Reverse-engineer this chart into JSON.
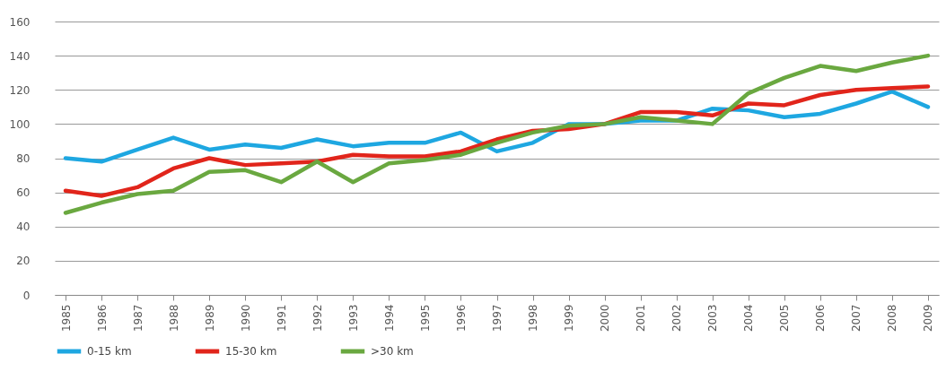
{
  "chart_data": {
    "type": "line",
    "categories": [
      "1985",
      "1986",
      "1987",
      "1988",
      "1989",
      "1990",
      "1991",
      "1992",
      "1993",
      "1994",
      "1995",
      "1996",
      "1997",
      "1998",
      "1999",
      "2000",
      "2001",
      "2002",
      "2003",
      "2004",
      "2005",
      "2006",
      "2007",
      "2008",
      "2009"
    ],
    "series": [
      {
        "name": "0-15 km",
        "color": "#1ea7e1",
        "values": [
          80,
          78,
          85,
          92,
          85,
          88,
          86,
          91,
          87,
          89,
          89,
          95,
          84,
          89,
          100,
          100,
          102,
          102,
          109,
          108,
          104,
          106,
          112,
          119,
          110
        ]
      },
      {
        "name": "15-30 km",
        "color": "#e1251b",
        "values": [
          61,
          58,
          63,
          74,
          80,
          76,
          77,
          78,
          82,
          81,
          81,
          84,
          91,
          96,
          97,
          100,
          107,
          107,
          105,
          112,
          111,
          117,
          120,
          121,
          122
        ]
      },
      {
        "name": ">30 km",
        "color": "#6aa840",
        "values": [
          48,
          54,
          59,
          61,
          72,
          73,
          66,
          78,
          66,
          77,
          79,
          82,
          89,
          95,
          99,
          100,
          104,
          102,
          100,
          118,
          127,
          134,
          131,
          136,
          140
        ]
      }
    ],
    "ylim": [
      0,
      160
    ],
    "yticks": [
      0,
      20,
      40,
      60,
      80,
      100,
      120,
      140,
      160
    ],
    "grid": "y",
    "legend": "bottom",
    "marker": "none",
    "line_style": "solid"
  }
}
